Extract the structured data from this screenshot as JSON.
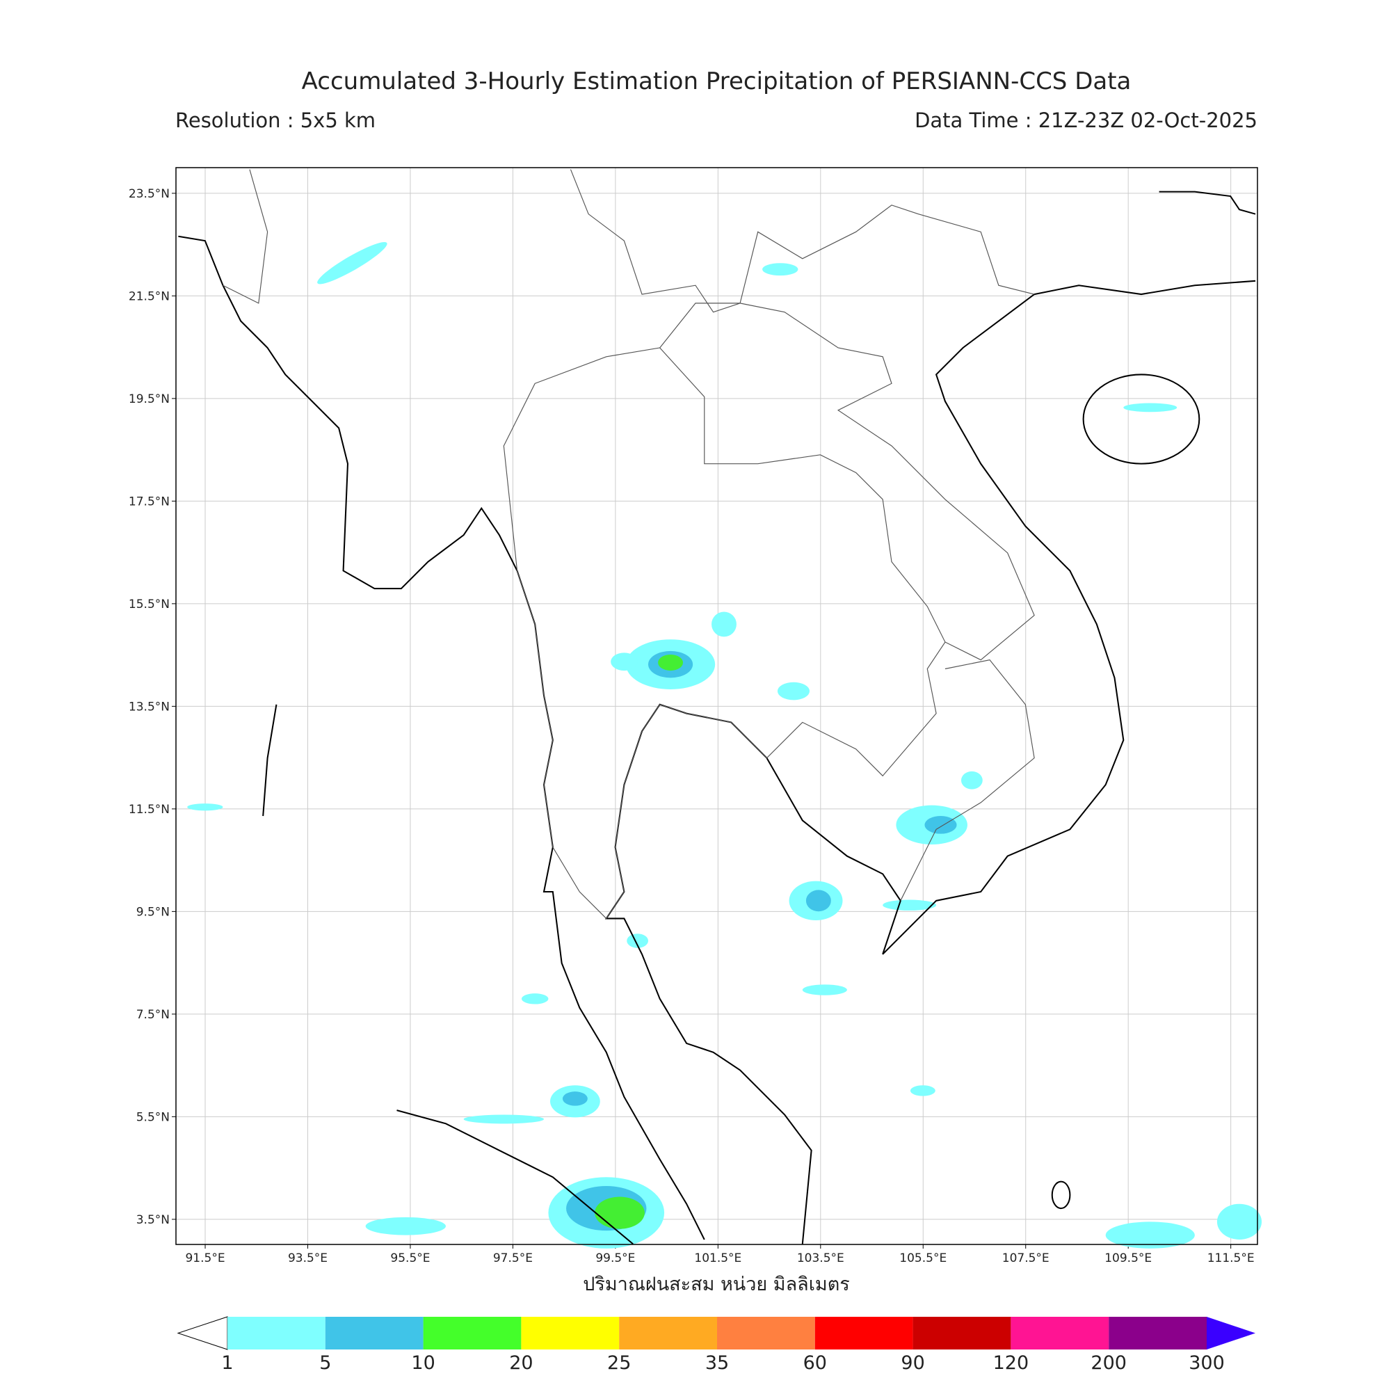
{
  "map": {
    "title": "Accumulated 3-Hourly Estimation Precipitation of PERSIANN-CCS Data",
    "resolution": "Resolution : 5x5 km",
    "data_time": "Data Time : 21Z-23Z 02-Oct-2025",
    "xlim": [
      90.93,
      112.02
    ],
    "ylim": [
      3.01,
      24.0
    ],
    "lat_ticks": [
      {
        "value": 23.5,
        "label": "23.5°N"
      },
      {
        "value": 21.5,
        "label": "21.5°N"
      },
      {
        "value": 19.5,
        "label": "19.5°N"
      },
      {
        "value": 17.5,
        "label": "17.5°N"
      },
      {
        "value": 15.5,
        "label": "15.5°N"
      },
      {
        "value": 13.5,
        "label": "13.5°N"
      },
      {
        "value": 11.5,
        "label": "11.5°N"
      },
      {
        "value": 9.5,
        "label": "9.5°N"
      },
      {
        "value": 7.5,
        "label": "7.5°N"
      },
      {
        "value": 5.5,
        "label": "5.5°N"
      },
      {
        "value": 3.5,
        "label": "3.5°N"
      }
    ],
    "lon_ticks": [
      {
        "value": 91.5,
        "label": "91.5°E"
      },
      {
        "value": 93.5,
        "label": "93.5°E"
      },
      {
        "value": 95.5,
        "label": "95.5°E"
      },
      {
        "value": 97.5,
        "label": "97.5°E"
      },
      {
        "value": 99.5,
        "label": "99.5°E"
      },
      {
        "value": 101.5,
        "label": "101.5°E"
      },
      {
        "value": 103.5,
        "label": "103.5°E"
      },
      {
        "value": 105.5,
        "label": "105.5°E"
      },
      {
        "value": 107.5,
        "label": "107.5°E"
      },
      {
        "value": 109.5,
        "label": "109.5°E"
      },
      {
        "value": 111.5,
        "label": "111.5°E"
      }
    ],
    "xlabel": "ปริมาณฝนสะสม หน่วย มิลลิเมตร",
    "colorbar": {
      "levels": [
        1,
        5,
        10,
        20,
        25,
        35,
        60,
        90,
        120,
        200,
        300
      ],
      "colors": [
        "#7fffff",
        "#40c4e8",
        "#44ff2a",
        "#ffff00",
        "#ffaa22",
        "#ff8040",
        "#ff0000",
        "#cc0000",
        "#ff1493",
        "#8b008b"
      ],
      "under_color": "#ffffff",
      "over_color": "#3a00ff"
    }
  }
}
